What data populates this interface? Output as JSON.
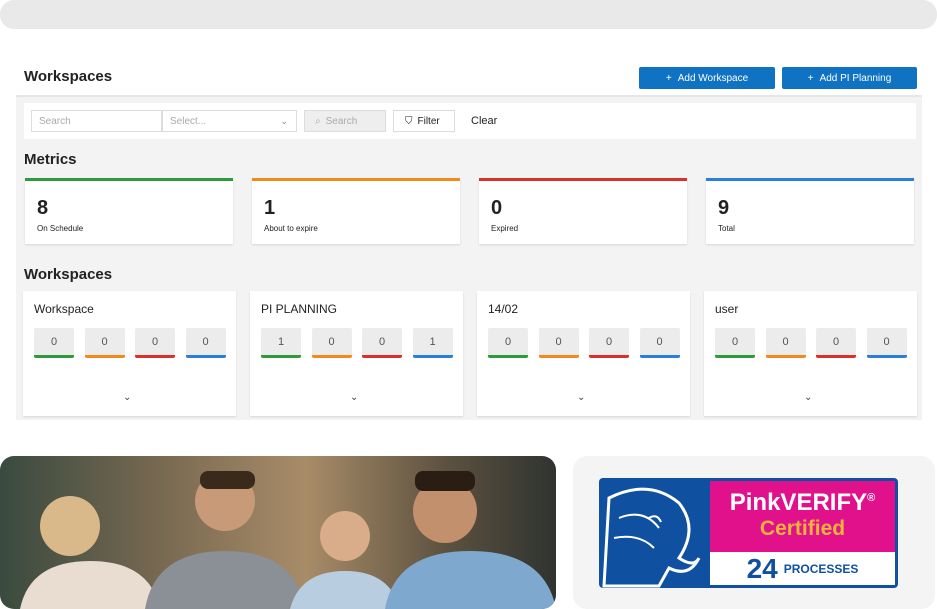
{
  "header": {
    "title": "Workspaces",
    "add_workspace": "Add Workspace",
    "add_pi_planning": "Add PI Planning"
  },
  "filters": {
    "search_placeholder": "Search",
    "select_placeholder": "Select...",
    "search_button": "Search",
    "filter_button": "Filter",
    "clear_button": "Clear"
  },
  "metrics": {
    "title": "Metrics",
    "items": [
      {
        "value": "8",
        "label": "On Schedule",
        "color": "#2e9a3c"
      },
      {
        "value": "1",
        "label": "About to expire",
        "color": "#f08a1c"
      },
      {
        "value": "0",
        "label": "Expired",
        "color": "#d9302c"
      },
      {
        "value": "9",
        "label": "Total",
        "color": "#2b7fd8"
      }
    ]
  },
  "workspaces": {
    "title": "Workspaces",
    "items": [
      {
        "name": "Workspace",
        "counts": [
          "0",
          "0",
          "0",
          "0"
        ]
      },
      {
        "name": "PI PLANNING",
        "counts": [
          "1",
          "0",
          "0",
          "1"
        ]
      },
      {
        "name": "14/02",
        "counts": [
          "0",
          "0",
          "0",
          "0"
        ]
      },
      {
        "name": "user",
        "counts": [
          "0",
          "0",
          "0",
          "0"
        ]
      }
    ]
  },
  "certification": {
    "brand": "PinkVERIFY",
    "registered": "®",
    "status": "Certified",
    "count": "24",
    "unit": "PROCESSES",
    "colors": {
      "blue": "#1050a0",
      "pink": "#e0118a",
      "gold": "#f2b33d"
    }
  }
}
